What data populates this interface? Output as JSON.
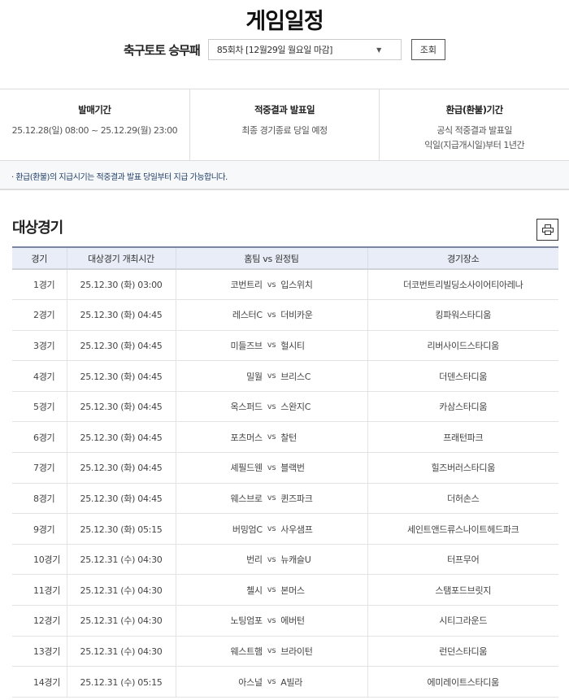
{
  "page": {
    "title": "게임일정"
  },
  "selector": {
    "game": "축구토토 승무패",
    "round": "85회차 [12월29일 월요일 마감]",
    "search_label": "조회"
  },
  "info": [
    {
      "heading": "발매기간",
      "lines": [
        "25.12.28(일) 08:00 ~ 25.12.29(월) 23:00"
      ]
    },
    {
      "heading": "적중결과 발표일",
      "lines": [
        "최종 경기종료 당일 예정"
      ]
    },
    {
      "heading": "환급(환불)기간",
      "lines": [
        "공식 적중결과 발표일",
        "익일(지급개시일)부터 1년간"
      ]
    }
  ],
  "notice": "· 환급(환불)의 지급시기는 적중결과 발표 당일부터 지급 가능합니다.",
  "section": {
    "title": "대상경기",
    "print_icon": "printer-icon"
  },
  "table": {
    "headers": [
      "경기",
      "대상경기 개최시간",
      "홈팀 vs 원정팀",
      "경기장소"
    ],
    "vs": "vs",
    "rows": [
      {
        "no": "1경기",
        "time": "25.12.30 (화) 03:00",
        "home": "코번트리",
        "away": "입스위치",
        "venue": "더코번트리빌딩소사이어티아레나"
      },
      {
        "no": "2경기",
        "time": "25.12.30 (화) 04:45",
        "home": "레스터C",
        "away": "더비카운",
        "venue": "킹파워스타디움"
      },
      {
        "no": "3경기",
        "time": "25.12.30 (화) 04:45",
        "home": "미들즈브",
        "away": "헐시티",
        "venue": "리버사이드스타디움"
      },
      {
        "no": "4경기",
        "time": "25.12.30 (화) 04:45",
        "home": "밀월",
        "away": "브리스C",
        "venue": "더덴스타디움"
      },
      {
        "no": "5경기",
        "time": "25.12.30 (화) 04:45",
        "home": "옥스퍼드",
        "away": "스완지C",
        "venue": "카삼스타디움"
      },
      {
        "no": "6경기",
        "time": "25.12.30 (화) 04:45",
        "home": "포츠머스",
        "away": "찰턴",
        "venue": "프래턴파크"
      },
      {
        "no": "7경기",
        "time": "25.12.30 (화) 04:45",
        "home": "셰필드웬",
        "away": "블랙번",
        "venue": "힐즈버러스타디움"
      },
      {
        "no": "8경기",
        "time": "25.12.30 (화) 04:45",
        "home": "웨스브로",
        "away": "퀸즈파크",
        "venue": "더허손스"
      },
      {
        "no": "9경기",
        "time": "25.12.30 (화) 05:15",
        "home": "버밍엄C",
        "away": "사우샘프",
        "venue": "세인트앤드류스나이트헤드파크"
      },
      {
        "no": "10경기",
        "time": "25.12.31 (수) 04:30",
        "home": "번리",
        "away": "뉴캐슬U",
        "venue": "터프무어"
      },
      {
        "no": "11경기",
        "time": "25.12.31 (수) 04:30",
        "home": "첼시",
        "away": "본머스",
        "venue": "스탬포드브릿지"
      },
      {
        "no": "12경기",
        "time": "25.12.31 (수) 04:30",
        "home": "노팅엄포",
        "away": "에버턴",
        "venue": "시티그라운드"
      },
      {
        "no": "13경기",
        "time": "25.12.31 (수) 04:30",
        "home": "웨스트햄",
        "away": "브라이턴",
        "venue": "런던스타디움"
      },
      {
        "no": "14경기",
        "time": "25.12.31 (수) 05:15",
        "home": "아스널",
        "away": "A빌라",
        "venue": "에미레이트스타디움"
      }
    ]
  }
}
